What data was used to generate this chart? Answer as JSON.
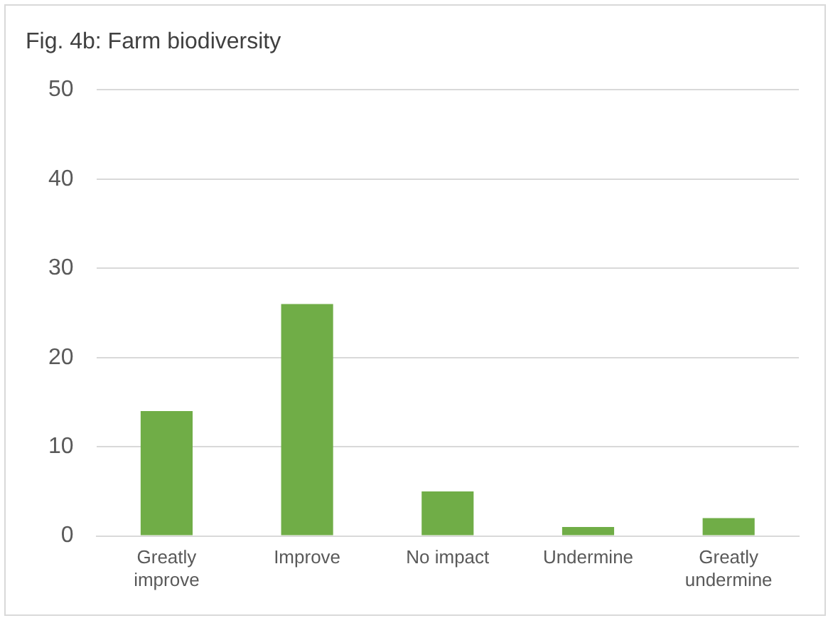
{
  "chart_data": {
    "type": "bar",
    "title": "Fig. 4b: Farm biodiversity",
    "categories": [
      "Greatly improve",
      "Improve",
      "No impact",
      "Undermine",
      "Greatly undermine"
    ],
    "values": [
      14,
      26,
      5,
      1,
      2
    ],
    "color": "#70ad47",
    "ylim": [
      0,
      50
    ],
    "yticks": [
      0,
      10,
      20,
      30,
      40,
      50
    ],
    "grid": "y",
    "legend": false
  }
}
